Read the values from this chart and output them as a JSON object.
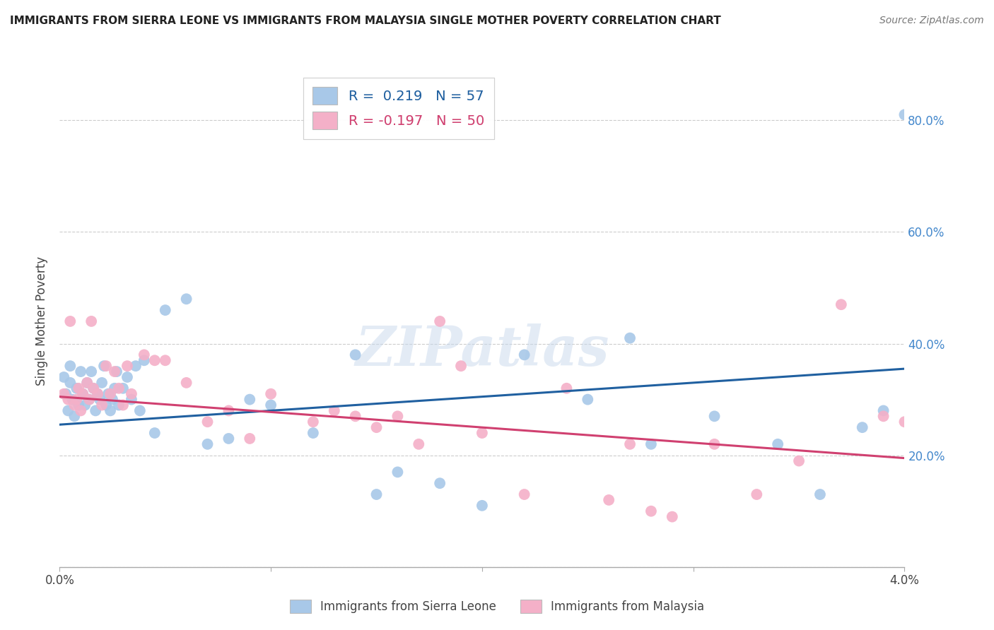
{
  "title": "IMMIGRANTS FROM SIERRA LEONE VS IMMIGRANTS FROM MALAYSIA SINGLE MOTHER POVERTY CORRELATION CHART",
  "source": "Source: ZipAtlas.com",
  "ylabel": "Single Mother Poverty",
  "legend_entry1": "R =  0.219   N = 57",
  "legend_entry2": "R = -0.197   N = 50",
  "legend_label1": "Immigrants from Sierra Leone",
  "legend_label2": "Immigrants from Malaysia",
  "watermark": "ZIPatlas",
  "color_blue": "#a8c8e8",
  "color_pink": "#f4b0c8",
  "color_blue_line": "#2060a0",
  "color_pink_line": "#d04070",
  "color_blue_text": "#2060a0",
  "color_pink_text": "#d04070",
  "color_blue_raxis": "#4488cc",
  "xmin": 0.0,
  "xmax": 0.04,
  "ymin": 0.0,
  "ymax": 0.88,
  "yticks": [
    0.0,
    0.2,
    0.4,
    0.6,
    0.8
  ],
  "ytick_labels": [
    "",
    "20.0%",
    "40.0%",
    "60.0%",
    "80.0%"
  ],
  "sl_trend_x0": 0.0,
  "sl_trend_x1": 0.04,
  "sl_trend_y0": 0.255,
  "sl_trend_y1": 0.355,
  "my_trend_x0": 0.0,
  "my_trend_x1": 0.04,
  "my_trend_y0": 0.305,
  "my_trend_y1": 0.195,
  "sierra_leone_x": [
    0.0002,
    0.0003,
    0.0004,
    0.0005,
    0.0005,
    0.0006,
    0.0007,
    0.0008,
    0.0009,
    0.001,
    0.0011,
    0.0012,
    0.0013,
    0.0014,
    0.0015,
    0.0016,
    0.0017,
    0.0018,
    0.0019,
    0.002,
    0.0021,
    0.0022,
    0.0023,
    0.0024,
    0.0025,
    0.0026,
    0.0027,
    0.0028,
    0.003,
    0.0032,
    0.0034,
    0.0036,
    0.0038,
    0.004,
    0.0045,
    0.005,
    0.006,
    0.007,
    0.008,
    0.009,
    0.01,
    0.012,
    0.014,
    0.016,
    0.018,
    0.02,
    0.022,
    0.025,
    0.028,
    0.031,
    0.034,
    0.036,
    0.038,
    0.039,
    0.04,
    0.027,
    0.015
  ],
  "sierra_leone_y": [
    0.34,
    0.31,
    0.28,
    0.33,
    0.36,
    0.3,
    0.27,
    0.32,
    0.29,
    0.35,
    0.31,
    0.29,
    0.33,
    0.3,
    0.35,
    0.32,
    0.28,
    0.31,
    0.3,
    0.33,
    0.36,
    0.29,
    0.31,
    0.28,
    0.3,
    0.32,
    0.35,
    0.29,
    0.32,
    0.34,
    0.3,
    0.36,
    0.28,
    0.37,
    0.24,
    0.46,
    0.48,
    0.22,
    0.23,
    0.3,
    0.29,
    0.24,
    0.38,
    0.17,
    0.15,
    0.11,
    0.38,
    0.3,
    0.22,
    0.27,
    0.22,
    0.13,
    0.25,
    0.28,
    0.81,
    0.41,
    0.13
  ],
  "malaysia_x": [
    0.0002,
    0.0004,
    0.0005,
    0.0007,
    0.0008,
    0.0009,
    0.001,
    0.0011,
    0.0013,
    0.0014,
    0.0015,
    0.0016,
    0.0018,
    0.002,
    0.0022,
    0.0024,
    0.0026,
    0.0028,
    0.003,
    0.0032,
    0.0034,
    0.004,
    0.0045,
    0.005,
    0.006,
    0.007,
    0.008,
    0.009,
    0.01,
    0.012,
    0.013,
    0.014,
    0.015,
    0.016,
    0.017,
    0.018,
    0.019,
    0.02,
    0.022,
    0.024,
    0.026,
    0.027,
    0.028,
    0.029,
    0.031,
    0.033,
    0.035,
    0.037,
    0.039,
    0.04
  ],
  "malaysia_y": [
    0.31,
    0.3,
    0.44,
    0.29,
    0.3,
    0.32,
    0.28,
    0.31,
    0.33,
    0.3,
    0.44,
    0.32,
    0.31,
    0.29,
    0.36,
    0.31,
    0.35,
    0.32,
    0.29,
    0.36,
    0.31,
    0.38,
    0.37,
    0.37,
    0.33,
    0.26,
    0.28,
    0.23,
    0.31,
    0.26,
    0.28,
    0.27,
    0.25,
    0.27,
    0.22,
    0.44,
    0.36,
    0.24,
    0.13,
    0.32,
    0.12,
    0.22,
    0.1,
    0.09,
    0.22,
    0.13,
    0.19,
    0.47,
    0.27,
    0.26
  ]
}
